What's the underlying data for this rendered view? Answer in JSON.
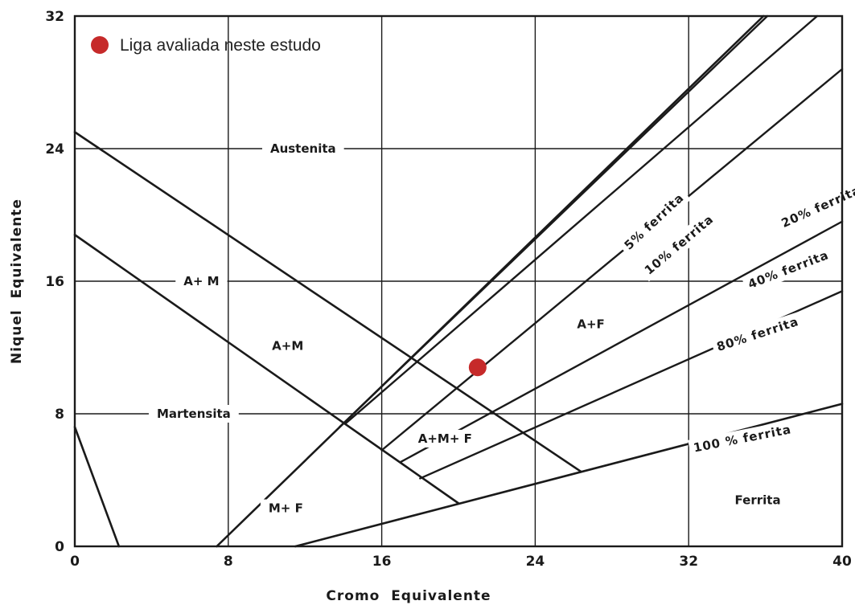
{
  "chart_data": {
    "type": "scatter",
    "xlabel": "Cromo  Equivalente",
    "ylabel": "Niquel  Equivalente",
    "xlim": [
      0,
      40
    ],
    "ylim": [
      0,
      32
    ],
    "x_ticks": [
      "0",
      "8",
      "16",
      "24",
      "32",
      "40"
    ],
    "y_ticks": [
      "0",
      "8",
      "16",
      "24",
      "32"
    ],
    "grid": true,
    "legend": {
      "position": "top-left",
      "label": "Liga avaliada neste estudo"
    },
    "colors": {
      "point": "#c62a2a",
      "lines": "#1a1a1a"
    },
    "point": {
      "x": 21.0,
      "y": 10.8
    },
    "phase_lines": [
      {
        "from": [
          0,
          25.0
        ],
        "to": [
          26.4,
          4.5
        ]
      },
      {
        "from": [
          0,
          18.8
        ],
        "to": [
          20.0,
          2.6
        ]
      },
      {
        "from": [
          0,
          7.2
        ],
        "to": [
          2.3,
          0
        ]
      },
      {
        "from": [
          7.4,
          0
        ],
        "to": [
          35.9,
          32
        ]
      },
      {
        "from": [
          11.5,
          0
        ],
        "to": [
          40,
          8.6
        ]
      }
    ],
    "ferrite_lines": [
      {
        "label": "5% ferrita",
        "from": [
          13.8,
          7.2
        ],
        "to": [
          36.1,
          32
        ]
      },
      {
        "label": "10% ferrita",
        "from": [
          14.1,
          7.4
        ],
        "to": [
          38.7,
          32
        ]
      },
      {
        "label": "20% ferrita",
        "from": [
          16.0,
          5.8
        ],
        "to": [
          40,
          28.8
        ]
      },
      {
        "label": "40% ferrita",
        "from": [
          17.0,
          5.1
        ],
        "to": [
          40,
          19.6
        ]
      },
      {
        "label": "80% ferrita",
        "from": [
          18.0,
          4.1
        ],
        "to": [
          40,
          15.4
        ]
      }
    ],
    "regions": [
      {
        "label": "Austenita",
        "x": 11.9,
        "y": 24
      },
      {
        "label": "A+ M",
        "x": 6.6,
        "y": 16
      },
      {
        "label": "A+M",
        "x": 11.1,
        "y": 12.1
      },
      {
        "label": "Martensita",
        "x": 6.2,
        "y": 8
      },
      {
        "label": "A+F",
        "x": 26.9,
        "y": 13.4
      },
      {
        "label": "A+M+ F",
        "x": 19.3,
        "y": 6.5
      },
      {
        "label": "M+ F",
        "x": 11.0,
        "y": 2.3
      },
      {
        "label": "Ferrita",
        "x": 35.6,
        "y": 2.8
      }
    ],
    "curve_labels": [
      {
        "label": "5%  ferrita",
        "x": 30.2,
        "y": 19.6,
        "rot": -43
      },
      {
        "label": "10%  ferrita",
        "x": 31.5,
        "y": 18.2,
        "rot": -40
      },
      {
        "label": "20%  ferrita",
        "x": 38.9,
        "y": 20.5,
        "rot": -24
      },
      {
        "label": "40%  ferrita",
        "x": 37.2,
        "y": 16.7,
        "rot": -21
      },
      {
        "label": "80%  ferrita",
        "x": 35.6,
        "y": 12.8,
        "rot": -18
      },
      {
        "label": "100 %  ferrita",
        "x": 34.8,
        "y": 6.5,
        "rot": -11
      }
    ]
  }
}
